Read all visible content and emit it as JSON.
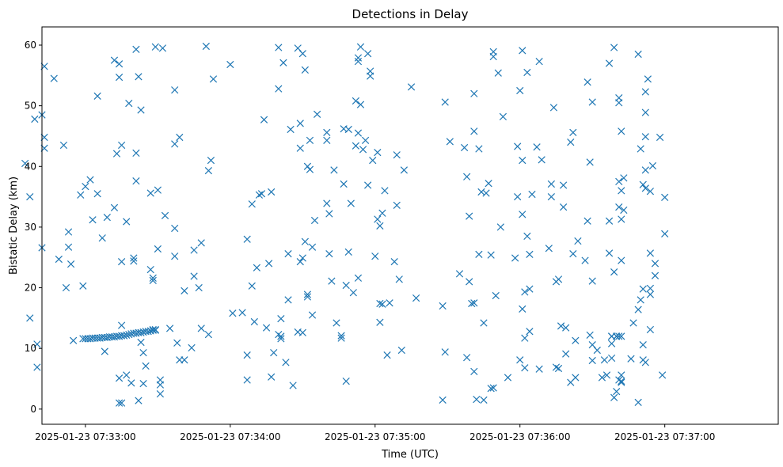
{
  "chart_data": {
    "type": "scatter",
    "title": "Detections in Delay",
    "xlabel": "Time (UTC)",
    "ylabel": "Bistatic Delay (km)",
    "marker": "x",
    "marker_color": "#1f77b4",
    "grid": false,
    "xlim": [
      "2025-01-23 07:32:42",
      "2025-01-23 07:37:47"
    ],
    "ylim": [
      -2.5,
      63
    ],
    "xticks": [
      "2025-01-23 07:33:00",
      "2025-01-23 07:34:00",
      "2025-01-23 07:35:00",
      "2025-01-23 07:36:00",
      "2025-01-23 07:37:00"
    ],
    "yticks": [
      0,
      10,
      20,
      30,
      40,
      50,
      60
    ],
    "x_unit": "seconds after 2025-01-23 07:33:00",
    "points": [
      [
        -25,
        40.5
      ],
      [
        -23,
        35
      ],
      [
        -23,
        15
      ],
      [
        -21,
        47.8
      ],
      [
        -20,
        10.7
      ],
      [
        -20,
        6.9
      ],
      [
        -18,
        48.5
      ],
      [
        -18,
        26.6
      ],
      [
        -17,
        44.8
      ],
      [
        -17,
        43
      ],
      [
        -17,
        56.5
      ],
      [
        -13,
        54.5
      ],
      [
        -11,
        24.7
      ],
      [
        -9,
        43.5
      ],
      [
        -8,
        20
      ],
      [
        -7,
        29.2
      ],
      [
        -7,
        26.7
      ],
      [
        -6,
        23.9
      ],
      [
        -5,
        11.3
      ],
      [
        -2,
        35.3
      ],
      [
        -1,
        20.3
      ],
      [
        0,
        36.7
      ],
      [
        2,
        37.8
      ],
      [
        3,
        31.2
      ],
      [
        5,
        35.5
      ],
      [
        5,
        51.6
      ],
      [
        7,
        28.2
      ],
      [
        8,
        9.5
      ],
      [
        9,
        31.6
      ],
      [
        12,
        33.2
      ],
      [
        12,
        57.5
      ],
      [
        13,
        42.1
      ],
      [
        14,
        56.9
      ],
      [
        14,
        54.7
      ],
      [
        15,
        24.3
      ],
      [
        15,
        43.5
      ],
      [
        15,
        13.8
      ],
      [
        14,
        5.1
      ],
      [
        14,
        1
      ],
      [
        15,
        1
      ],
      [
        17,
        5.6
      ],
      [
        17,
        30.9
      ],
      [
        18,
        50.4
      ],
      [
        19,
        4.3
      ],
      [
        20,
        24.4
      ],
      [
        20,
        24.9
      ],
      [
        21,
        59.3
      ],
      [
        21,
        42.2
      ],
      [
        21,
        37.6
      ],
      [
        22,
        54.8
      ],
      [
        22,
        1.4
      ],
      [
        23,
        49.3
      ],
      [
        23,
        11
      ],
      [
        24,
        9.3
      ],
      [
        24,
        4.2
      ],
      [
        25,
        7.1
      ],
      [
        27,
        23
      ],
      [
        27,
        35.6
      ],
      [
        28,
        21.2
      ],
      [
        28,
        21.6
      ],
      [
        28,
        13.1
      ],
      [
        29,
        13.1
      ],
      [
        29,
        59.7
      ],
      [
        30,
        26.4
      ],
      [
        30,
        36.1
      ],
      [
        31,
        4.8
      ],
      [
        31,
        2.5
      ],
      [
        31,
        4
      ],
      [
        32,
        59.5
      ],
      [
        33,
        31.9
      ],
      [
        35,
        13.3
      ],
      [
        37,
        52.6
      ],
      [
        37,
        43.7
      ],
      [
        37,
        25.2
      ],
      [
        37,
        29.8
      ],
      [
        38,
        10.9
      ],
      [
        39,
        44.8
      ],
      [
        39,
        8.1
      ],
      [
        41,
        8.1
      ],
      [
        41,
        19.5
      ],
      [
        44,
        10.1
      ],
      [
        45,
        26.2
      ],
      [
        45,
        21.9
      ],
      [
        47,
        20
      ],
      [
        48,
        27.4
      ],
      [
        48,
        13.3
      ],
      [
        50,
        59.8
      ],
      [
        51,
        12.3
      ],
      [
        51,
        39.3
      ],
      [
        52,
        41
      ],
      [
        53,
        54.4
      ],
      [
        60,
        56.8
      ],
      [
        61,
        15.8
      ],
      [
        65,
        15.9
      ],
      [
        67,
        4.8
      ],
      [
        67,
        8.9
      ],
      [
        67,
        28
      ],
      [
        69,
        33.8
      ],
      [
        69,
        20.3
      ],
      [
        70,
        14.4
      ],
      [
        71,
        23.3
      ],
      [
        72,
        35.3
      ],
      [
        73,
        35.5
      ],
      [
        74,
        47.7
      ],
      [
        75,
        13.4
      ],
      [
        76,
        24
      ],
      [
        77,
        35.8
      ],
      [
        77,
        5.3
      ],
      [
        78,
        9.3
      ],
      [
        80,
        59.6
      ],
      [
        80,
        12.3
      ],
      [
        80,
        52.8
      ],
      [
        81,
        12
      ],
      [
        81,
        14.9
      ],
      [
        81,
        11.6
      ],
      [
        82,
        57.1
      ],
      [
        83,
        7.7
      ],
      [
        84,
        25.6
      ],
      [
        84,
        18
      ],
      [
        85,
        46.1
      ],
      [
        86,
        3.9
      ],
      [
        88,
        59.5
      ],
      [
        88,
        12.7
      ],
      [
        89,
        43
      ],
      [
        89,
        24.3
      ],
      [
        89,
        47.1
      ],
      [
        90,
        58.6
      ],
      [
        90,
        24.9
      ],
      [
        90,
        12.6
      ],
      [
        91,
        27.6
      ],
      [
        91,
        55.9
      ],
      [
        92,
        40
      ],
      [
        92,
        18.5
      ],
      [
        92,
        18.9
      ],
      [
        93,
        39.5
      ],
      [
        93,
        44.3
      ],
      [
        94,
        26.7
      ],
      [
        94,
        15.5
      ],
      [
        95,
        31.1
      ],
      [
        96,
        48.6
      ],
      [
        100,
        45.6
      ],
      [
        100,
        33.9
      ],
      [
        100,
        44.3
      ],
      [
        101,
        25.6
      ],
      [
        101,
        32.2
      ],
      [
        102,
        21.1
      ],
      [
        103,
        39.4
      ],
      [
        104,
        14.2
      ],
      [
        106,
        12.1
      ],
      [
        106,
        11.7
      ],
      [
        107,
        37.1
      ],
      [
        107,
        46.2
      ],
      [
        108,
        4.6
      ],
      [
        108,
        20.4
      ],
      [
        109,
        25.9
      ],
      [
        109,
        46.1
      ],
      [
        110,
        33.9
      ],
      [
        111,
        19.2
      ],
      [
        112,
        50.8
      ],
      [
        112,
        43.4
      ],
      [
        113,
        57.3
      ],
      [
        113,
        57.9
      ],
      [
        113,
        45.5
      ],
      [
        113,
        21.6
      ],
      [
        114,
        59.7
      ],
      [
        114,
        50.2
      ],
      [
        115,
        42.8
      ],
      [
        116,
        44.3
      ],
      [
        117,
        36.9
      ],
      [
        117,
        58.6
      ],
      [
        118,
        55.7
      ],
      [
        118,
        54.9
      ],
      [
        119,
        41
      ],
      [
        120,
        25.2
      ],
      [
        121,
        42.3
      ],
      [
        121,
        31.3
      ],
      [
        122,
        30.2
      ],
      [
        122,
        17.4
      ],
      [
        122,
        14.3
      ],
      [
        123,
        17.3
      ],
      [
        123,
        32.3
      ],
      [
        124,
        36
      ],
      [
        125,
        8.9
      ],
      [
        126,
        17.5
      ],
      [
        128,
        24.3
      ],
      [
        129,
        41.9
      ],
      [
        129,
        33.6
      ],
      [
        130,
        21.4
      ],
      [
        131,
        9.7
      ],
      [
        132,
        39.4
      ],
      [
        135,
        53.1
      ],
      [
        137,
        18.3
      ],
      [
        148,
        17
      ],
      [
        148,
        1.5
      ],
      [
        149,
        50.6
      ],
      [
        149,
        9.4
      ],
      [
        151,
        44.1
      ],
      [
        155,
        22.3
      ],
      [
        157,
        43.1
      ],
      [
        158,
        38.3
      ],
      [
        158,
        8.5
      ],
      [
        159,
        31.8
      ],
      [
        159,
        21
      ],
      [
        160,
        17.4
      ],
      [
        161,
        6.2
      ],
      [
        161,
        17.5
      ],
      [
        161,
        45.8
      ],
      [
        161,
        52
      ],
      [
        162,
        1.6
      ],
      [
        163,
        25.5
      ],
      [
        163,
        42.9
      ],
      [
        164,
        35.8
      ],
      [
        165,
        14.2
      ],
      [
        165,
        1.5
      ],
      [
        166,
        35.6
      ],
      [
        167,
        37.2
      ],
      [
        168,
        3.4
      ],
      [
        168,
        25.4
      ],
      [
        169,
        3.5
      ],
      [
        169,
        58.1
      ],
      [
        169,
        58.9
      ],
      [
        170,
        18.7
      ],
      [
        171,
        55.4
      ],
      [
        172,
        30
      ],
      [
        173,
        48.2
      ],
      [
        175,
        5.2
      ],
      [
        178,
        24.9
      ],
      [
        179,
        35
      ],
      [
        179,
        43.3
      ],
      [
        180,
        52.5
      ],
      [
        180,
        8.1
      ],
      [
        181,
        16.5
      ],
      [
        181,
        32.1
      ],
      [
        181,
        41
      ],
      [
        181,
        59.1
      ],
      [
        182,
        19.3
      ],
      [
        182,
        11.7
      ],
      [
        182,
        6.8
      ],
      [
        183,
        28.5
      ],
      [
        183,
        55.5
      ],
      [
        184,
        19.8
      ],
      [
        184,
        25.5
      ],
      [
        184,
        12.8
      ],
      [
        185,
        35.4
      ],
      [
        187,
        43.2
      ],
      [
        188,
        57.3
      ],
      [
        188,
        6.6
      ],
      [
        189,
        41.1
      ],
      [
        192,
        26.5
      ],
      [
        193,
        37.1
      ],
      [
        193,
        35
      ],
      [
        194,
        49.7
      ],
      [
        195,
        21
      ],
      [
        195,
        6.9
      ],
      [
        196,
        21.4
      ],
      [
        196,
        6.7
      ],
      [
        197,
        13.7
      ],
      [
        198,
        33.3
      ],
      [
        198,
        36.9
      ],
      [
        199,
        13.4
      ],
      [
        199,
        9.1
      ],
      [
        201,
        44
      ],
      [
        202,
        45.6
      ],
      [
        202,
        25.6
      ],
      [
        201,
        4.4
      ],
      [
        203,
        5.2
      ],
      [
        203,
        11.3
      ],
      [
        204,
        27.7
      ],
      [
        207,
        24.5
      ],
      [
        208,
        53.9
      ],
      [
        208,
        31
      ],
      [
        209,
        40.7
      ],
      [
        209,
        12.2
      ],
      [
        210,
        21.1
      ],
      [
        210,
        50.6
      ],
      [
        210,
        10.6
      ],
      [
        210,
        8
      ],
      [
        212,
        9.7
      ],
      [
        214,
        5.2
      ],
      [
        215,
        8.1
      ],
      [
        216,
        5.6
      ],
      [
        217,
        25.7
      ],
      [
        217,
        31
      ],
      [
        217,
        57
      ],
      [
        218,
        12
      ],
      [
        218,
        12
      ],
      [
        218,
        10.8
      ],
      [
        218,
        8.4
      ],
      [
        219,
        59.6
      ],
      [
        219,
        22.6
      ],
      [
        219,
        1.9
      ],
      [
        220,
        2.9
      ],
      [
        220,
        12
      ],
      [
        220,
        12
      ],
      [
        221,
        37.5
      ],
      [
        221,
        33.3
      ],
      [
        221,
        12
      ],
      [
        221,
        4.8
      ],
      [
        221,
        50.5
      ],
      [
        221,
        51.3
      ],
      [
        222,
        45.8
      ],
      [
        222,
        36
      ],
      [
        222,
        31.3
      ],
      [
        222,
        24.5
      ],
      [
        222,
        4.4
      ],
      [
        222,
        12
      ],
      [
        222,
        5.6
      ],
      [
        222,
        4.6
      ],
      [
        223,
        38.1
      ],
      [
        223,
        32.8
      ],
      [
        226,
        8.3
      ],
      [
        227,
        14.2
      ],
      [
        229,
        16.4
      ],
      [
        229,
        58.5
      ],
      [
        229,
        1.1
      ],
      [
        230,
        18
      ],
      [
        230,
        42.9
      ],
      [
        231,
        19.8
      ],
      [
        231,
        37
      ],
      [
        231,
        10.6
      ],
      [
        231,
        8.1
      ],
      [
        232,
        52.3
      ],
      [
        232,
        48.9
      ],
      [
        232,
        44.9
      ],
      [
        232,
        39.4
      ],
      [
        232,
        36.4
      ],
      [
        232,
        7.7
      ],
      [
        233,
        54.4
      ],
      [
        234,
        19.9
      ],
      [
        234,
        18.9
      ],
      [
        234,
        35.9
      ],
      [
        234,
        25.7
      ],
      [
        234,
        13.1
      ],
      [
        235,
        40.1
      ],
      [
        236,
        24
      ],
      [
        236,
        22
      ],
      [
        238,
        44.8
      ],
      [
        239,
        5.6
      ],
      [
        240,
        34.9
      ],
      [
        240,
        28.9
      ],
      [
        -1,
        11.6
      ],
      [
        0,
        11.6
      ],
      [
        1,
        11.6
      ],
      [
        2,
        11.6
      ],
      [
        3,
        11.7
      ],
      [
        4,
        11.7
      ],
      [
        5,
        11.7
      ],
      [
        6,
        11.7
      ],
      [
        7,
        11.8
      ],
      [
        8,
        11.8
      ],
      [
        9,
        11.8
      ],
      [
        10,
        11.9
      ],
      [
        11,
        11.9
      ],
      [
        12,
        11.9
      ],
      [
        13,
        12
      ],
      [
        14,
        12
      ],
      [
        15,
        12.1
      ],
      [
        16,
        12.1
      ],
      [
        17,
        12.2
      ],
      [
        18,
        12.3
      ],
      [
        19,
        12.4
      ],
      [
        20,
        12.5
      ],
      [
        21,
        12.5
      ],
      [
        22,
        12.6
      ],
      [
        23,
        12.6
      ],
      [
        24,
        12.7
      ],
      [
        25,
        12.8
      ],
      [
        26,
        12.8
      ],
      [
        27,
        12.9
      ],
      [
        28,
        13
      ],
      [
        29,
        13
      ]
    ]
  }
}
